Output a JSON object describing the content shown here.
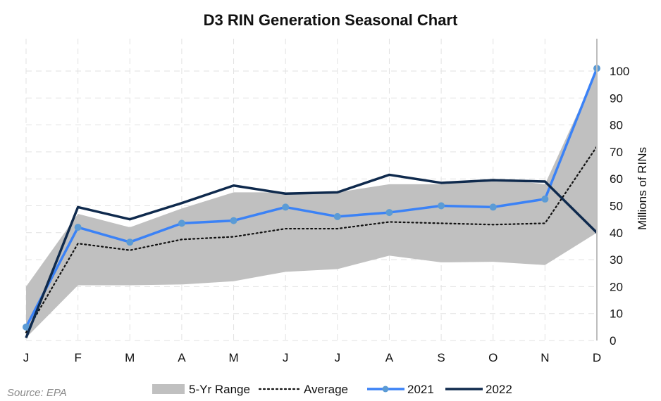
{
  "chart_data": {
    "type": "line",
    "title": "D3 RIN Generation Seasonal Chart",
    "ylabel": "Millions of RINs",
    "xlabel": "",
    "categories": [
      "J",
      "F",
      "M",
      "A",
      "M",
      "J",
      "J",
      "A",
      "S",
      "O",
      "N",
      "D"
    ],
    "ylim": [
      0,
      110
    ],
    "yticks": [
      0,
      10,
      20,
      30,
      40,
      50,
      60,
      70,
      80,
      90,
      100
    ],
    "grid": true,
    "legend_position": "bottom",
    "source": "Source: EPA",
    "range": {
      "name": "5-Yr Range",
      "low": [
        1,
        20.5,
        20.5,
        20.8,
        22,
        25.5,
        26.5,
        31.5,
        29,
        29.2,
        28,
        40
      ],
      "high": [
        20,
        47,
        42,
        49,
        55,
        55,
        55,
        58,
        58,
        60,
        58,
        100
      ],
      "color": "#c0c0c0"
    },
    "series": [
      {
        "name": "Average",
        "values": [
          3,
          36,
          33.5,
          37.5,
          38.5,
          41.5,
          41.5,
          44,
          43.5,
          43,
          43.5,
          72
        ],
        "color": "#111111",
        "style": "dotted"
      },
      {
        "name": "2021",
        "values": [
          5,
          42,
          36.5,
          43.5,
          44.5,
          49.5,
          46,
          47.5,
          50,
          49.5,
          52.5,
          101
        ],
        "color": "#3b82f6",
        "style": "line-markers"
      },
      {
        "name": "2022",
        "values": [
          1,
          49.5,
          45,
          51,
          57.5,
          54.5,
          55,
          61.5,
          58.5,
          59.5,
          59,
          40
        ],
        "color": "#0f2a4d",
        "style": "line"
      }
    ]
  }
}
